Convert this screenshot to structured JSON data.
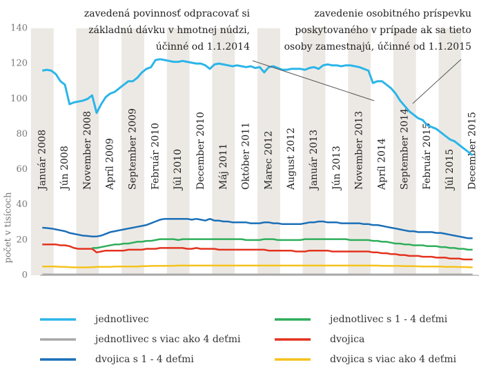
{
  "chart_data": {
    "type": "line",
    "ylabel": "počet v tisícoch",
    "annotations": [
      {
        "lines": [
          "zavedená povinnosť odpracovať si",
          "základnú dávku v hmotnej núdzi,",
          "účinné od 1.1.2014"
        ]
      },
      {
        "lines": [
          "zavedenie osobitného príspevku",
          "poskytovaného v prípade ak sa tieto",
          "osoby zamestnajú, účinné od 1.1.2015"
        ]
      }
    ],
    "categories": [
      "Január 2008",
      null,
      null,
      null,
      null,
      "Jún 2008",
      null,
      null,
      null,
      null,
      "November 2008",
      null,
      null,
      null,
      null,
      "Apríl 2009",
      null,
      null,
      null,
      null,
      "September 2009",
      null,
      null,
      null,
      null,
      "Február 2010",
      null,
      null,
      null,
      null,
      "Júl 2010",
      null,
      null,
      null,
      null,
      "December 2010",
      null,
      null,
      null,
      null,
      "Máj 2011",
      null,
      null,
      null,
      null,
      "Október 2011",
      null,
      null,
      null,
      null,
      "Marec 2012",
      null,
      null,
      null,
      null,
      "August 2012",
      null,
      null,
      null,
      null,
      "Január 2013",
      null,
      null,
      null,
      null,
      "Jún 2013",
      null,
      null,
      null,
      null,
      "November 2013",
      null,
      null,
      null,
      null,
      "Apríl 2014",
      null,
      null,
      null,
      null,
      "September 2014",
      null,
      null,
      null,
      null,
      "Február 2015",
      null,
      null,
      null,
      null,
      "Júl 2015",
      null,
      null,
      null,
      null,
      "December 2015"
    ],
    "ylim": [
      0,
      140
    ],
    "yticks": [
      0,
      20,
      40,
      60,
      80,
      100,
      120,
      140
    ],
    "grid": false,
    "series": [
      {
        "name": "jednotlivec",
        "color": "#2bb5e8",
        "values": [
          116,
          116.5,
          116,
          114,
          110,
          108,
          97,
          98,
          98.5,
          99,
          100,
          102,
          92,
          97,
          101,
          103,
          104,
          106,
          108,
          110,
          110,
          112,
          115,
          117,
          118,
          122,
          122.5,
          122,
          121.5,
          121,
          121,
          121.5,
          121,
          120.5,
          120,
          120,
          119,
          117,
          119.5,
          120,
          119.5,
          119,
          118.5,
          119,
          118.5,
          118,
          118.5,
          117.5,
          118,
          115,
          118,
          118.5,
          117.5,
          116.5,
          116.5,
          117,
          117,
          117,
          116.5,
          117.5,
          118,
          117,
          119,
          119.5,
          119,
          119,
          118.5,
          119,
          119,
          118.5,
          118,
          117,
          116,
          109,
          110,
          110,
          108,
          106,
          103,
          99,
          96,
          93,
          91,
          89,
          88,
          85,
          84,
          83,
          81,
          79,
          77,
          76,
          74,
          72,
          70,
          68
        ]
      },
      {
        "name": "jednotlivec s viac ako 4 deťmi",
        "color": "#a8a8a8",
        "values": [
          0.5,
          0.5,
          0.5,
          0.5,
          0.5,
          0.5,
          0.5,
          0.5,
          0.5,
          0.5,
          0.5,
          0.5,
          0.5,
          0.5,
          0.5,
          0.5,
          0.5,
          0.5,
          0.5,
          0.5,
          0.5,
          0.5,
          0.5,
          0.5,
          0.5,
          0.5,
          0.5,
          0.5,
          0.5,
          0.5,
          0.5,
          0.5,
          0.5,
          0.5,
          0.5,
          0.5,
          0.5,
          0.5,
          0.5,
          0.5,
          0.5,
          0.5,
          0.5,
          0.5,
          0.5,
          0.5,
          0.5,
          0.5,
          0.5,
          0.5,
          0.5,
          0.5,
          0.5,
          0.5,
          0.5,
          0.5,
          0.5,
          0.5,
          0.5,
          0.5,
          0.5,
          0.5,
          0.5,
          0.5,
          0.5,
          0.5,
          0.5,
          0.5,
          0.5,
          0.5,
          0.5,
          0.5,
          0.5,
          0.5,
          0.5,
          0.5,
          0.5,
          0.5,
          0.5,
          0.5,
          0.5,
          0.5,
          0.5,
          0.5,
          0.5,
          0.5,
          0.5,
          0.5,
          0.5,
          0.5,
          0.5,
          0.5,
          0.5,
          0.5,
          0.5,
          0.5
        ]
      },
      {
        "name": "dvojica s 1  - 4 deťmi",
        "color": "#1a6fb8",
        "values": [
          27,
          26.8,
          26.5,
          26,
          25.5,
          25,
          24,
          23.5,
          23,
          22.5,
          22.3,
          22,
          22,
          22.5,
          23.5,
          24.5,
          25,
          25.5,
          26,
          26.5,
          27,
          27.5,
          28,
          28.5,
          29.5,
          30.5,
          31.5,
          32,
          32,
          32,
          32,
          32,
          32,
          31.5,
          32,
          31.5,
          31,
          32,
          31,
          31,
          30.5,
          30.5,
          30,
          30,
          30,
          30,
          29.5,
          29.5,
          29.5,
          30,
          30,
          29.5,
          29.5,
          29,
          29,
          29,
          29,
          29,
          29.5,
          30,
          30,
          30.5,
          30.5,
          30,
          30,
          30,
          29.5,
          29.5,
          29.5,
          29.5,
          29.5,
          29,
          29,
          28.5,
          28.5,
          28,
          27.5,
          27,
          26.5,
          26,
          25.5,
          25,
          25,
          24.5,
          24.5,
          24.5,
          24.5,
          24,
          24,
          23.5,
          23,
          22.5,
          22,
          21.5,
          21,
          21
        ]
      },
      {
        "name": "jednotlivec s 1  - 4 deťmi",
        "color": "#2eae5a",
        "values": [
          null,
          null,
          null,
          null,
          null,
          null,
          null,
          null,
          null,
          null,
          null,
          15.5,
          15.5,
          16,
          16.5,
          17,
          17.5,
          17.5,
          18,
          18,
          18.5,
          19,
          19,
          19.5,
          19.5,
          20,
          20.5,
          20.5,
          20.5,
          20.5,
          20,
          20.5,
          20.5,
          20.5,
          20.5,
          20.5,
          20.5,
          20.5,
          20.5,
          20.5,
          20.5,
          20.5,
          20.5,
          20.5,
          20.5,
          20,
          20,
          20,
          20,
          20.5,
          20.5,
          20.5,
          20,
          20,
          20,
          20,
          20,
          20,
          20.5,
          20.5,
          20.5,
          20.5,
          20.5,
          20.5,
          20.5,
          20.5,
          20.5,
          20.5,
          20,
          20,
          20,
          20,
          20,
          19.5,
          19.5,
          19,
          19,
          18.5,
          18,
          18,
          17.5,
          17.5,
          17,
          17,
          17,
          16.5,
          16.5,
          16.5,
          16,
          16,
          15.5,
          15.5,
          15,
          15,
          14.5,
          14.5
        ]
      },
      {
        "name": "dvojica",
        "color": "#e3321e",
        "values": [
          17.5,
          17.5,
          17.5,
          17.5,
          17,
          17,
          16.5,
          15.5,
          15,
          15,
          15,
          15,
          13,
          13.5,
          14,
          14,
          14,
          14,
          14,
          14.5,
          14.5,
          14.5,
          14.5,
          15,
          15,
          15,
          15.5,
          15.5,
          15.5,
          15.5,
          15.5,
          15.5,
          15,
          15,
          15.5,
          15,
          15,
          15,
          15,
          14.5,
          14.5,
          14.5,
          14.5,
          14.5,
          14.5,
          14.5,
          14.5,
          14.5,
          14.5,
          14.5,
          14,
          14,
          14,
          14,
          14,
          14,
          13.5,
          13.5,
          13.5,
          14,
          14,
          14,
          14,
          14,
          13.5,
          13.5,
          13.5,
          13.5,
          13.5,
          13.5,
          13.5,
          13.5,
          13.5,
          13,
          13,
          12.5,
          12.5,
          12,
          12,
          11.5,
          11.5,
          11,
          11,
          11,
          10.5,
          10.5,
          10.5,
          10,
          10,
          10,
          9.5,
          9.5,
          9.5,
          9,
          9,
          9
        ]
      },
      {
        "name": "dvojica s viac ako 4 deťmi",
        "color": "#f5c21b",
        "values": [
          5,
          5,
          5,
          5,
          4.8,
          4.8,
          4.6,
          4.5,
          4.5,
          4.5,
          4.5,
          4.6,
          4.8,
          4.8,
          4.8,
          4.8,
          5,
          5,
          5,
          5,
          5,
          5,
          5.2,
          5.2,
          5.3,
          5.3,
          5.3,
          5.4,
          5.4,
          5.4,
          5.5,
          5.5,
          5.5,
          5.5,
          5.5,
          5.5,
          5.5,
          5.5,
          5.5,
          5.5,
          5.5,
          5.5,
          5.5,
          5.5,
          5.5,
          5.5,
          5.5,
          5.5,
          5.5,
          5.5,
          5.5,
          5.5,
          5.5,
          5.5,
          5.5,
          5.5,
          5.5,
          5.5,
          5.5,
          5.5,
          5.5,
          5.5,
          5.5,
          5.5,
          5.5,
          5.5,
          5.5,
          5.5,
          5.5,
          5.5,
          5.5,
          5.5,
          5.5,
          5.5,
          5.5,
          5.4,
          5.4,
          5.3,
          5.3,
          5.3,
          5.2,
          5.2,
          5.2,
          5.1,
          5,
          5,
          5,
          5,
          5,
          4.8,
          4.8,
          4.8,
          4.7,
          4.7,
          4.6,
          4.5
        ]
      }
    ]
  }
}
